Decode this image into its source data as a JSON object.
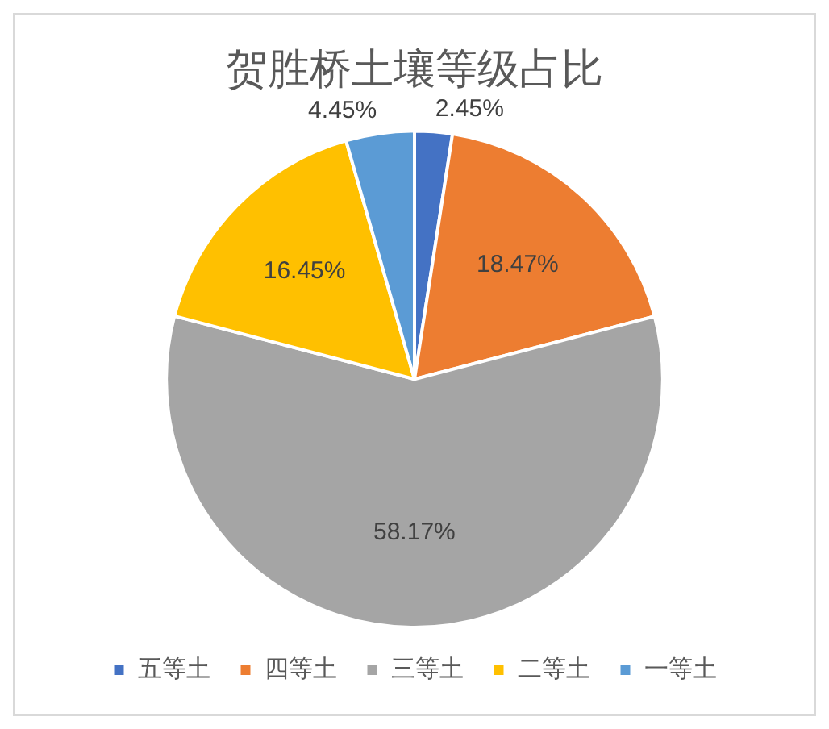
{
  "chart_data": {
    "type": "pie",
    "title": "贺胜桥土壤等级占比",
    "categories": [
      "五等土",
      "四等土",
      "三等土",
      "二等土",
      "一等土"
    ],
    "values": [
      2.45,
      18.47,
      58.17,
      16.45,
      4.45
    ],
    "colors": [
      "#4472c4",
      "#ed7d31",
      "#a5a5a5",
      "#ffc000",
      "#5b9bd5"
    ],
    "value_labels": [
      "2.45%",
      "18.47%",
      "58.17%",
      "16.45%",
      "4.45%"
    ],
    "legend": "bottom"
  }
}
